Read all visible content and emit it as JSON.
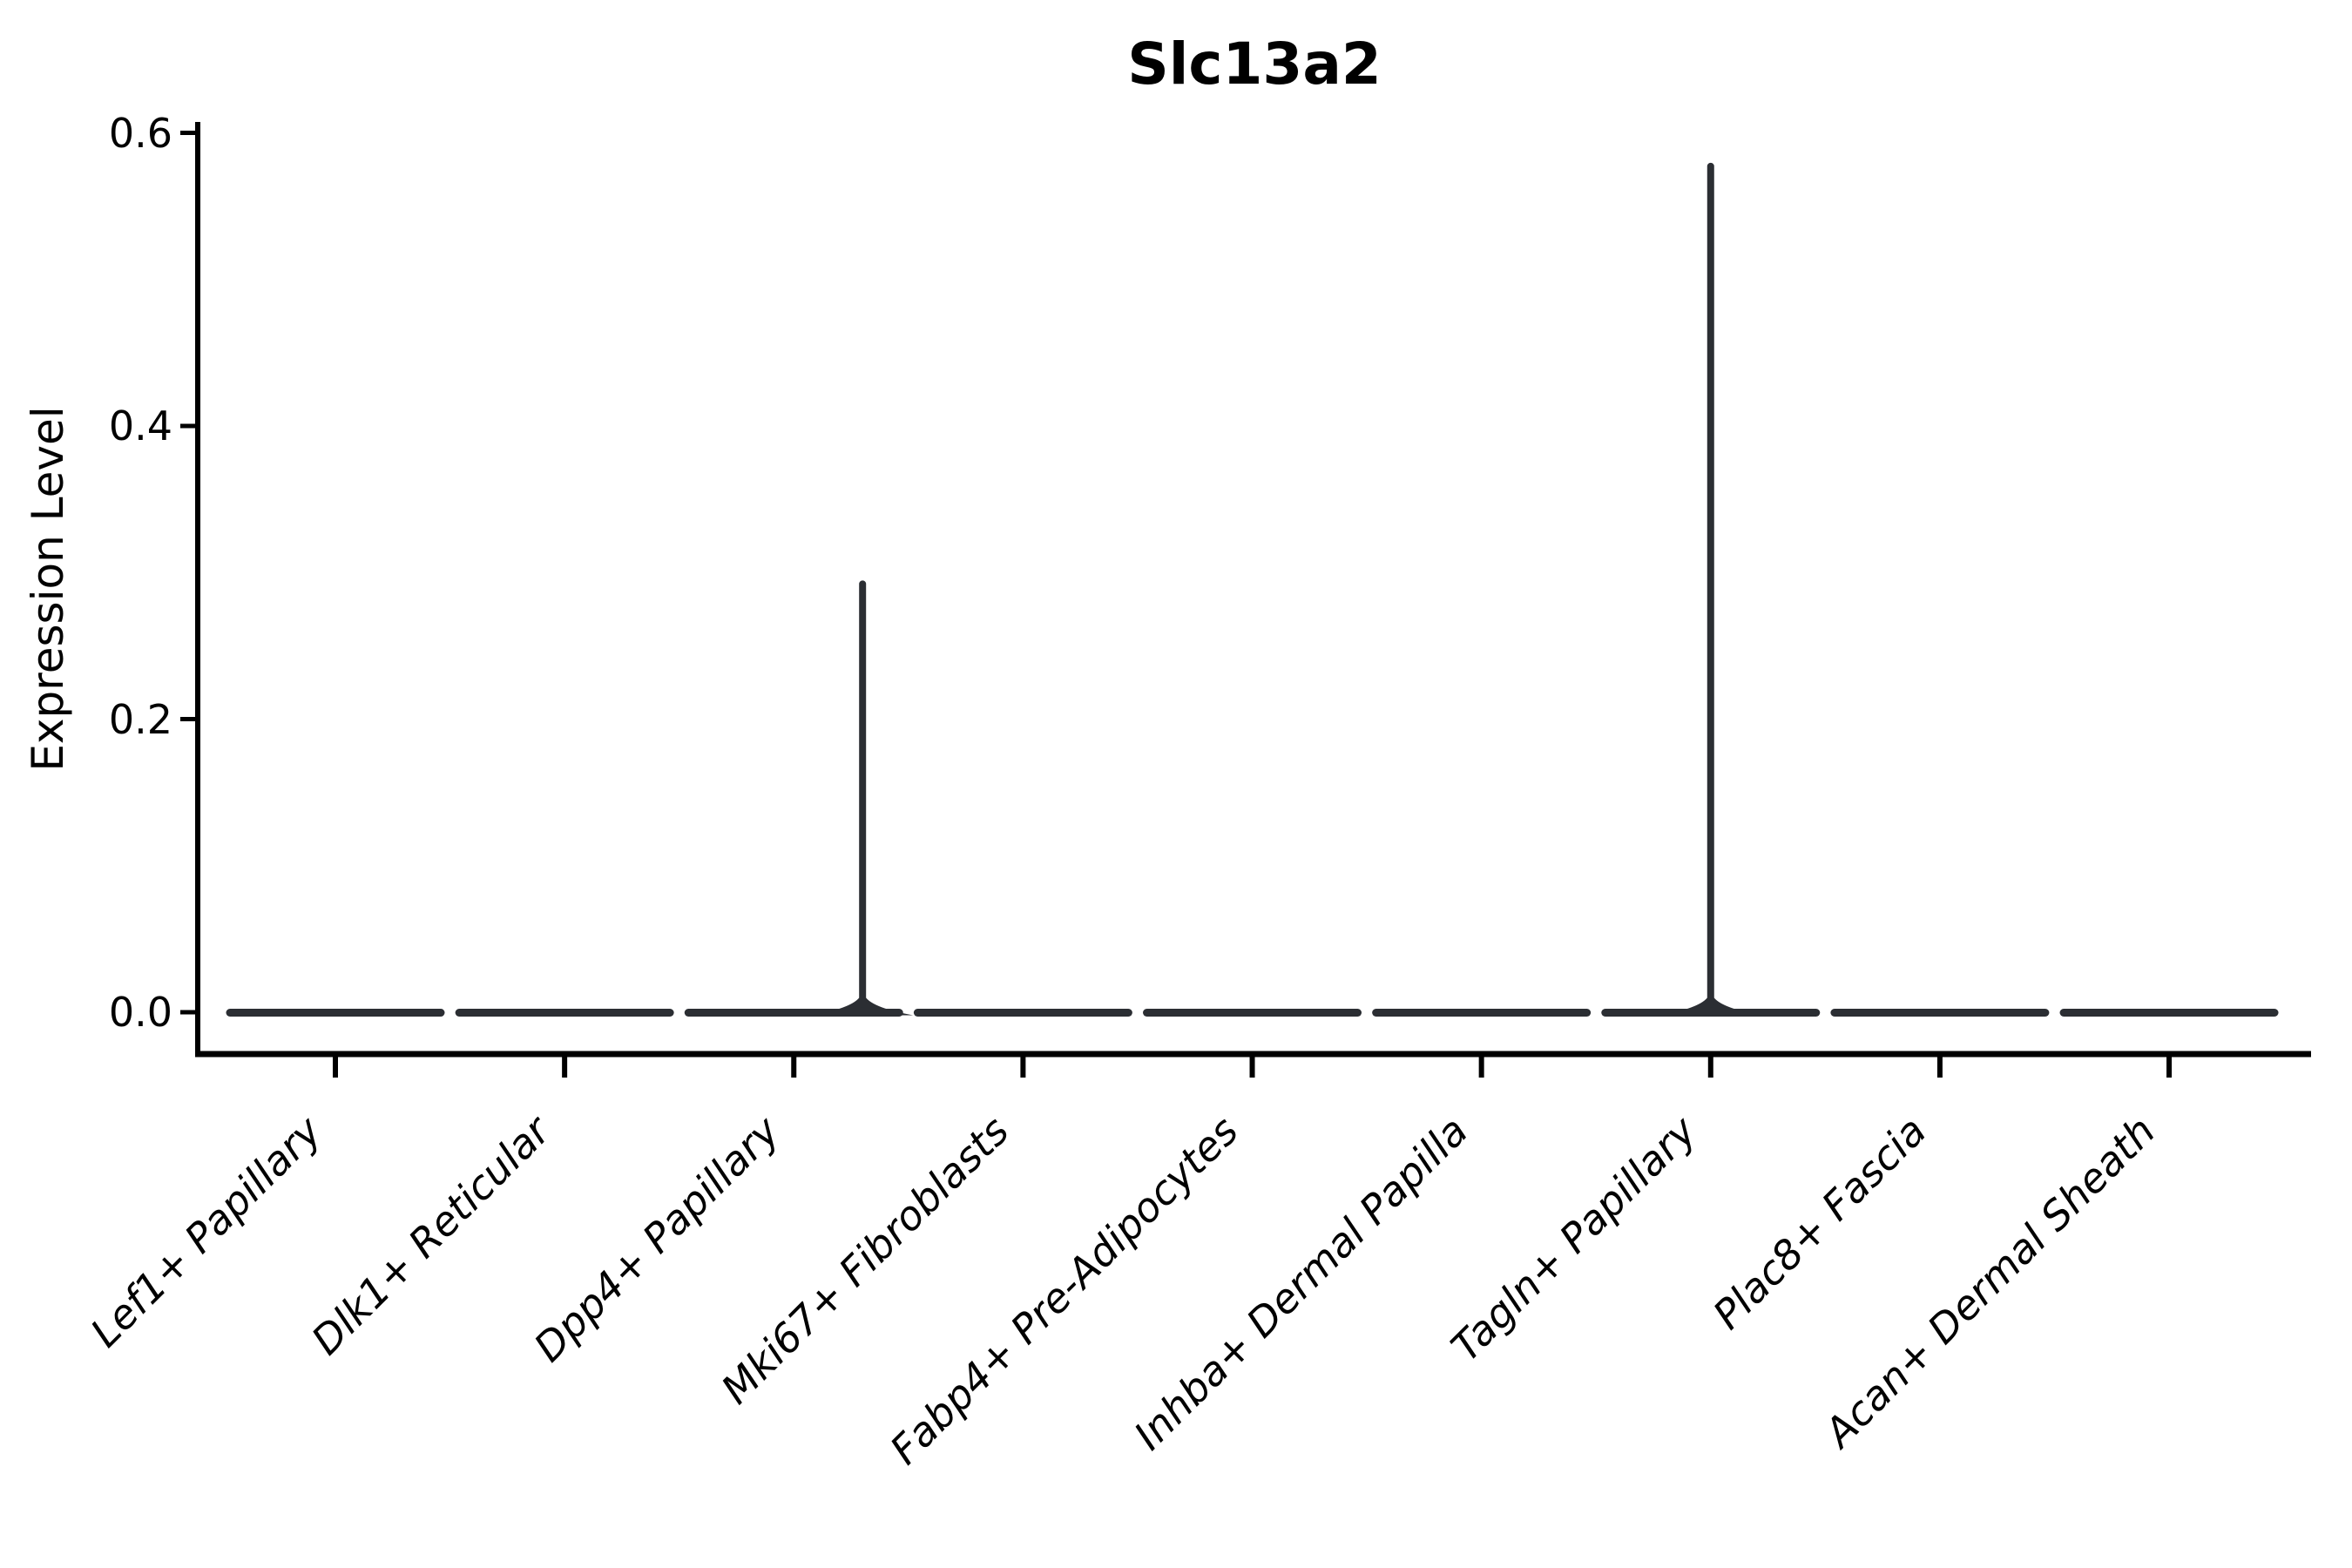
{
  "figure": {
    "background": "#ffffff",
    "colors": {
      "violin": "#2b2e33",
      "axis": "#000000",
      "text": "#000000"
    }
  },
  "chart_data": {
    "type": "violin",
    "title": "Slc13a2",
    "xlabel": "",
    "ylabel": "Expression Level",
    "categories": [
      "Lef1+ Papillary",
      "Dlk1+ Reticular",
      "Dpp4+ Papillary",
      "Mki67+ Fibroblasts",
      "Fabp4+ Pre-Adipocytes",
      "Inhba+ Dermal Papilla",
      "Tagln+ Papillary",
      "Plac8+ Fascia",
      "Acan+ Dermal Sheath"
    ],
    "series": [
      {
        "name": "Lef1+ Papillary",
        "body_value": 0.0,
        "max": 0.0
      },
      {
        "name": "Dlk1+ Reticular",
        "body_value": 0.0,
        "max": 0.0
      },
      {
        "name": "Dpp4+ Papillary",
        "body_value": 0.0,
        "max": 0.294,
        "spike_offset_frac": 0.3
      },
      {
        "name": "Mki67+ Fibroblasts",
        "body_value": 0.0,
        "max": 0.0
      },
      {
        "name": "Fabp4+ Pre-Adipocytes",
        "body_value": 0.0,
        "max": 0.0
      },
      {
        "name": "Inhba+ Dermal Papilla",
        "body_value": 0.0,
        "max": 0.0
      },
      {
        "name": "Tagln+ Papillary",
        "body_value": 0.0,
        "max": 0.579,
        "spike_offset_frac": 0.0
      },
      {
        "name": "Plac8+ Fascia",
        "body_value": 0.0,
        "max": 0.0
      },
      {
        "name": "Acan+ Dermal Sheath",
        "body_value": 0.0,
        "max": 0.0
      }
    ],
    "yticks": [
      0.0,
      0.2,
      0.4,
      0.6
    ],
    "ytick_labels": [
      "0.0",
      "0.2",
      "0.4",
      "0.6"
    ],
    "ylim": [
      -0.029,
      0.608
    ],
    "grid": false,
    "legend": false,
    "x_tick_label_rotation": 45,
    "x_tick_label_style": "italic"
  }
}
